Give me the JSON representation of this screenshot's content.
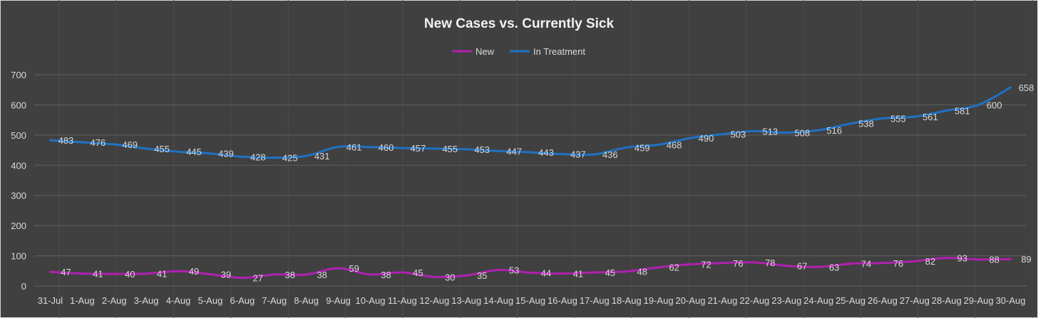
{
  "chart_data": {
    "type": "line",
    "title": "New Cases vs. Currently Sick",
    "xlabel": "",
    "ylabel": "",
    "ylim": [
      0,
      700
    ],
    "yticks": [
      0,
      100,
      200,
      300,
      400,
      500,
      600,
      700
    ],
    "grid": true,
    "legend_position": "top",
    "categories": [
      "31-Jul",
      "1-Aug",
      "2-Aug",
      "3-Aug",
      "4-Aug",
      "5-Aug",
      "6-Aug",
      "7-Aug",
      "8-Aug",
      "9-Aug",
      "10-Aug",
      "11-Aug",
      "12-Aug",
      "13-Aug",
      "14-Aug",
      "15-Aug",
      "16-Aug",
      "17-Aug",
      "18-Aug",
      "19-Aug",
      "20-Aug",
      "21-Aug",
      "22-Aug",
      "23-Aug",
      "24-Aug",
      "25-Aug",
      "26-Aug",
      "27-Aug",
      "28-Aug",
      "29-Aug",
      "30-Aug"
    ],
    "series": [
      {
        "name": "New",
        "color": "#b020b0",
        "values": [
          47,
          41,
          40,
          41,
          49,
          39,
          27,
          38,
          38,
          59,
          38,
          45,
          30,
          35,
          53,
          44,
          41,
          45,
          48,
          62,
          72,
          76,
          78,
          67,
          63,
          74,
          76,
          82,
          93,
          88,
          89
        ]
      },
      {
        "name": "In Treatment",
        "color": "#1f72c4",
        "values": [
          483,
          476,
          469,
          455,
          445,
          439,
          428,
          425,
          431,
          461,
          460,
          457,
          455,
          453,
          447,
          443,
          437,
          436,
          459,
          468,
          490,
          503,
          513,
          508,
          516,
          538,
          555,
          561,
          581,
          600,
          658
        ]
      }
    ]
  }
}
